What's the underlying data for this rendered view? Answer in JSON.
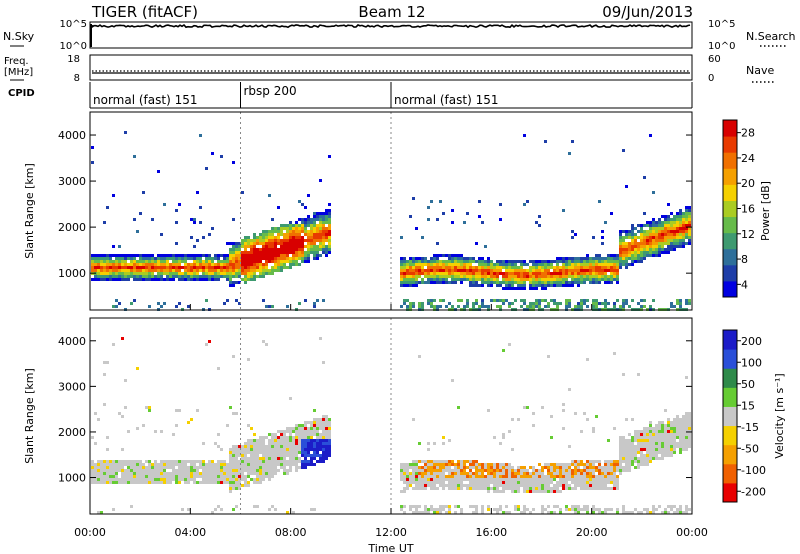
{
  "header": {
    "radar": "TIGER (fitACF)",
    "beam": "Beam 12",
    "date": "09/Jun/2013"
  },
  "top_panels": {
    "nsky": {
      "label": "N.Sky",
      "ticks": [
        "10^5",
        "10^0"
      ]
    },
    "nsearch": {
      "label": "N.Search",
      "ticks": [
        "10^5",
        "10^0"
      ]
    },
    "freq": {
      "label_line1": "Freq.",
      "label_line2": "[MHz]",
      "ticks": [
        "18",
        "8"
      ]
    },
    "nave": {
      "label": "Nave",
      "ticks": [
        "60",
        "0"
      ]
    },
    "cpid": {
      "label": "CPID",
      "segments": [
        {
          "start_hour": 0,
          "end_hour": 6,
          "name": "normal (fast) 151"
        },
        {
          "start_hour": 6,
          "end_hour": 12,
          "name": "rbsp 200"
        },
        {
          "start_hour": 12,
          "end_hour": 24,
          "name": "normal (fast) 151"
        }
      ]
    }
  },
  "chart_data": [
    {
      "type": "heatmap",
      "title": "",
      "ylabel": "Slant Range [km]",
      "y_ticks": [
        "1000",
        "2000",
        "3000",
        "4000"
      ],
      "ylim": [
        200,
        4500
      ],
      "xlim_hours": [
        0,
        24
      ],
      "colorbar": {
        "label": "Power [dB]",
        "ticks": [
          "4",
          "8",
          "12",
          "16",
          "20",
          "24",
          "28"
        ],
        "range": [
          0,
          30
        ],
        "colors": [
          "#0000e0",
          "#1e3ea8",
          "#2e6f9a",
          "#3e9a70",
          "#66bb4a",
          "#aacc22",
          "#f5d000",
          "#f5a000",
          "#f07000",
          "#e83a00",
          "#d80000"
        ]
      }
    },
    {
      "type": "heatmap",
      "title": "",
      "ylabel": "Slant Range [km]",
      "y_ticks": [
        "1000",
        "2000",
        "3000",
        "4000"
      ],
      "ylim": [
        200,
        4500
      ],
      "xlim_hours": [
        0,
        24
      ],
      "xlabel": "Time UT",
      "x_ticks": [
        "00:00",
        "04:00",
        "08:00",
        "12:00",
        "16:00",
        "20:00",
        "00:00"
      ],
      "colorbar": {
        "label": "Velocity [m s⁻¹]",
        "ticks": [
          "200",
          "100",
          "50",
          "15",
          "-15",
          "-50",
          "-100",
          "-200"
        ],
        "colors": [
          "#1c1cc8",
          "#2a4fd8",
          "#2e8a4a",
          "#66cc33",
          "#c8c8c8",
          "#f5d000",
          "#f5a000",
          "#f06000",
          "#e80000"
        ]
      }
    }
  ]
}
